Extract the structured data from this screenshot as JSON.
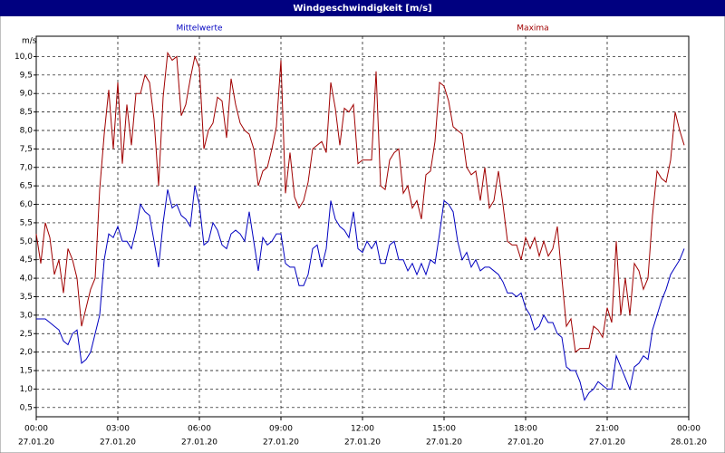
{
  "chart_data": {
    "type": "line",
    "title": "Windgeschwindigkeit [m/s]",
    "y_label": "m/s",
    "x": [
      0,
      10,
      20,
      30,
      40,
      50,
      60,
      70,
      80,
      90,
      100,
      110,
      120,
      130,
      140,
      150,
      160,
      170,
      180,
      190,
      200,
      210,
      220,
      230,
      240,
      250,
      260,
      270,
      280,
      290,
      300,
      310,
      320,
      330,
      340,
      350,
      360,
      370,
      380,
      390,
      400,
      410,
      420,
      430,
      440,
      450,
      460,
      470,
      480,
      490,
      500,
      510,
      520,
      530,
      540,
      550,
      560,
      570,
      580,
      590,
      600,
      610,
      620,
      630,
      640,
      650,
      660,
      670,
      680,
      690,
      700,
      710,
      720,
      730,
      740,
      750,
      760,
      770,
      780,
      790,
      800,
      810,
      820,
      830,
      840,
      850,
      860,
      870,
      880,
      890,
      900,
      910,
      920,
      930,
      940,
      950,
      960,
      970,
      980,
      990,
      1000,
      1010,
      1020,
      1030,
      1040,
      1050,
      1060,
      1070,
      1080,
      1090,
      1100,
      1110,
      1120,
      1130,
      1140,
      1150,
      1160,
      1170,
      1180,
      1190,
      1200,
      1210,
      1220,
      1230,
      1240,
      1250,
      1260,
      1270,
      1280,
      1290,
      1300,
      1310,
      1320,
      1330,
      1340,
      1350,
      1360,
      1370,
      1380,
      1390,
      1400,
      1410,
      1420,
      1430
    ],
    "series": [
      {
        "name": "Mittelwerte",
        "color": "#0000c0",
        "values": [
          2.9,
          2.9,
          2.9,
          2.8,
          2.7,
          2.6,
          2.3,
          2.2,
          2.5,
          2.6,
          1.7,
          1.8,
          2.0,
          2.5,
          3.0,
          4.5,
          5.2,
          5.1,
          5.4,
          5.0,
          5.0,
          4.8,
          5.3,
          6.0,
          5.8,
          5.7,
          5.0,
          4.3,
          5.5,
          6.4,
          5.9,
          6.0,
          5.7,
          5.6,
          5.4,
          6.5,
          6.0,
          4.9,
          5.0,
          5.5,
          5.3,
          4.9,
          4.8,
          5.2,
          5.3,
          5.2,
          5.0,
          5.8,
          5.0,
          4.2,
          5.1,
          4.9,
          5.0,
          5.2,
          5.2,
          4.4,
          4.3,
          4.3,
          3.8,
          3.8,
          4.1,
          4.8,
          4.9,
          4.3,
          4.8,
          6.1,
          5.6,
          5.4,
          5.3,
          5.1,
          5.8,
          4.8,
          4.7,
          5.0,
          4.8,
          5.0,
          4.4,
          4.4,
          4.9,
          5.0,
          4.5,
          4.5,
          4.2,
          4.4,
          4.1,
          4.4,
          4.1,
          4.5,
          4.4,
          5.2,
          6.1,
          6.0,
          5.8,
          5.0,
          4.5,
          4.7,
          4.3,
          4.5,
          4.2,
          4.3,
          4.3,
          4.2,
          4.1,
          3.9,
          3.6,
          3.6,
          3.5,
          3.6,
          3.2,
          3.0,
          2.6,
          2.7,
          3.0,
          2.8,
          2.8,
          2.5,
          2.4,
          1.6,
          1.5,
          1.5,
          1.2,
          0.7,
          0.9,
          1.0,
          1.2,
          1.1,
          1.0,
          1.0,
          1.9,
          1.6,
          1.3,
          1.0,
          1.6,
          1.7,
          1.9,
          1.8,
          2.6,
          3.0,
          3.4,
          3.7,
          4.1,
          4.3,
          4.5,
          4.8
        ]
      },
      {
        "name": "Maxima",
        "color": "#a00000",
        "values": [
          5.2,
          4.4,
          5.5,
          5.1,
          4.1,
          4.5,
          3.6,
          4.8,
          4.5,
          4.0,
          2.7,
          3.2,
          3.7,
          4.0,
          6.4,
          7.9,
          9.1,
          7.5,
          9.3,
          7.1,
          8.7,
          7.6,
          9.0,
          9.0,
          9.5,
          9.3,
          8.3,
          6.5,
          8.9,
          10.1,
          9.9,
          10.0,
          8.4,
          8.7,
          9.4,
          10.0,
          9.7,
          7.5,
          8.0,
          8.2,
          8.9,
          8.8,
          7.8,
          9.4,
          8.7,
          8.2,
          8.0,
          7.9,
          7.5,
          6.5,
          6.9,
          7.0,
          7.5,
          8.1,
          9.9,
          6.3,
          7.4,
          6.2,
          5.9,
          6.1,
          6.6,
          7.5,
          7.6,
          7.7,
          7.4,
          9.3,
          8.6,
          7.6,
          8.6,
          8.5,
          8.7,
          7.1,
          7.2,
          7.2,
          7.2,
          9.6,
          6.5,
          6.4,
          7.2,
          7.4,
          7.5,
          6.3,
          6.5,
          5.9,
          6.1,
          5.6,
          6.8,
          6.9,
          7.7,
          9.3,
          9.2,
          8.8,
          8.1,
          8.0,
          7.9,
          7.0,
          6.8,
          6.9,
          6.1,
          7.0,
          5.9,
          6.1,
          6.9,
          6.0,
          5.0,
          4.9,
          4.9,
          4.5,
          5.1,
          4.8,
          5.1,
          4.6,
          5.0,
          4.6,
          4.8,
          5.4,
          4.0,
          2.7,
          2.9,
          2.0,
          2.1,
          2.1,
          2.1,
          2.7,
          2.6,
          2.4,
          3.2,
          2.8,
          5.0,
          3.0,
          4.0,
          3.0,
          4.4,
          4.2,
          3.7,
          4.0,
          5.7,
          6.9,
          6.7,
          6.6,
          7.2,
          8.5,
          8.0,
          7.6
        ]
      }
    ],
    "xlim": [
      0,
      1440
    ],
    "xticks": [
      {
        "value": 0,
        "label": "00:00"
      },
      {
        "value": 180,
        "label": "03:00"
      },
      {
        "value": 360,
        "label": "06:00"
      },
      {
        "value": 540,
        "label": "09:00"
      },
      {
        "value": 720,
        "label": "12:00"
      },
      {
        "value": 900,
        "label": "15:00"
      },
      {
        "value": 1080,
        "label": "18:00"
      },
      {
        "value": 1260,
        "label": "21:00"
      },
      {
        "value": 1440,
        "label": "00:00"
      }
    ],
    "xtick_dates": [
      "27.01.20",
      "27.01.20",
      "27.01.20",
      "27.01.20",
      "27.01.20",
      "27.01.20",
      "27.01.20",
      "27.01.20",
      "28.01.20"
    ],
    "ylim": [
      0.25,
      10.55
    ],
    "yticks": [
      {
        "value": 0.5,
        "label": "0,5"
      },
      {
        "value": 1,
        "label": "1,0"
      },
      {
        "value": 1.5,
        "label": "1,5"
      },
      {
        "value": 2,
        "label": "2,0"
      },
      {
        "value": 2.5,
        "label": "2,5"
      },
      {
        "value": 3,
        "label": "3,0"
      },
      {
        "value": 3.5,
        "label": "3,5"
      },
      {
        "value": 4,
        "label": "4,0"
      },
      {
        "value": 4.5,
        "label": "4,5"
      },
      {
        "value": 5,
        "label": "5,0"
      },
      {
        "value": 5.5,
        "label": "5,5"
      },
      {
        "value": 6,
        "label": "6,0"
      },
      {
        "value": 6.5,
        "label": "6,5"
      },
      {
        "value": 7,
        "label": "7,0"
      },
      {
        "value": 7.5,
        "label": "7,5"
      },
      {
        "value": 8,
        "label": "8,0"
      },
      {
        "value": 8.5,
        "label": "8,5"
      },
      {
        "value": 9,
        "label": "9,0"
      },
      {
        "value": 9.5,
        "label": "9,5"
      },
      {
        "value": 10,
        "label": "10,0"
      }
    ],
    "grid": true
  }
}
